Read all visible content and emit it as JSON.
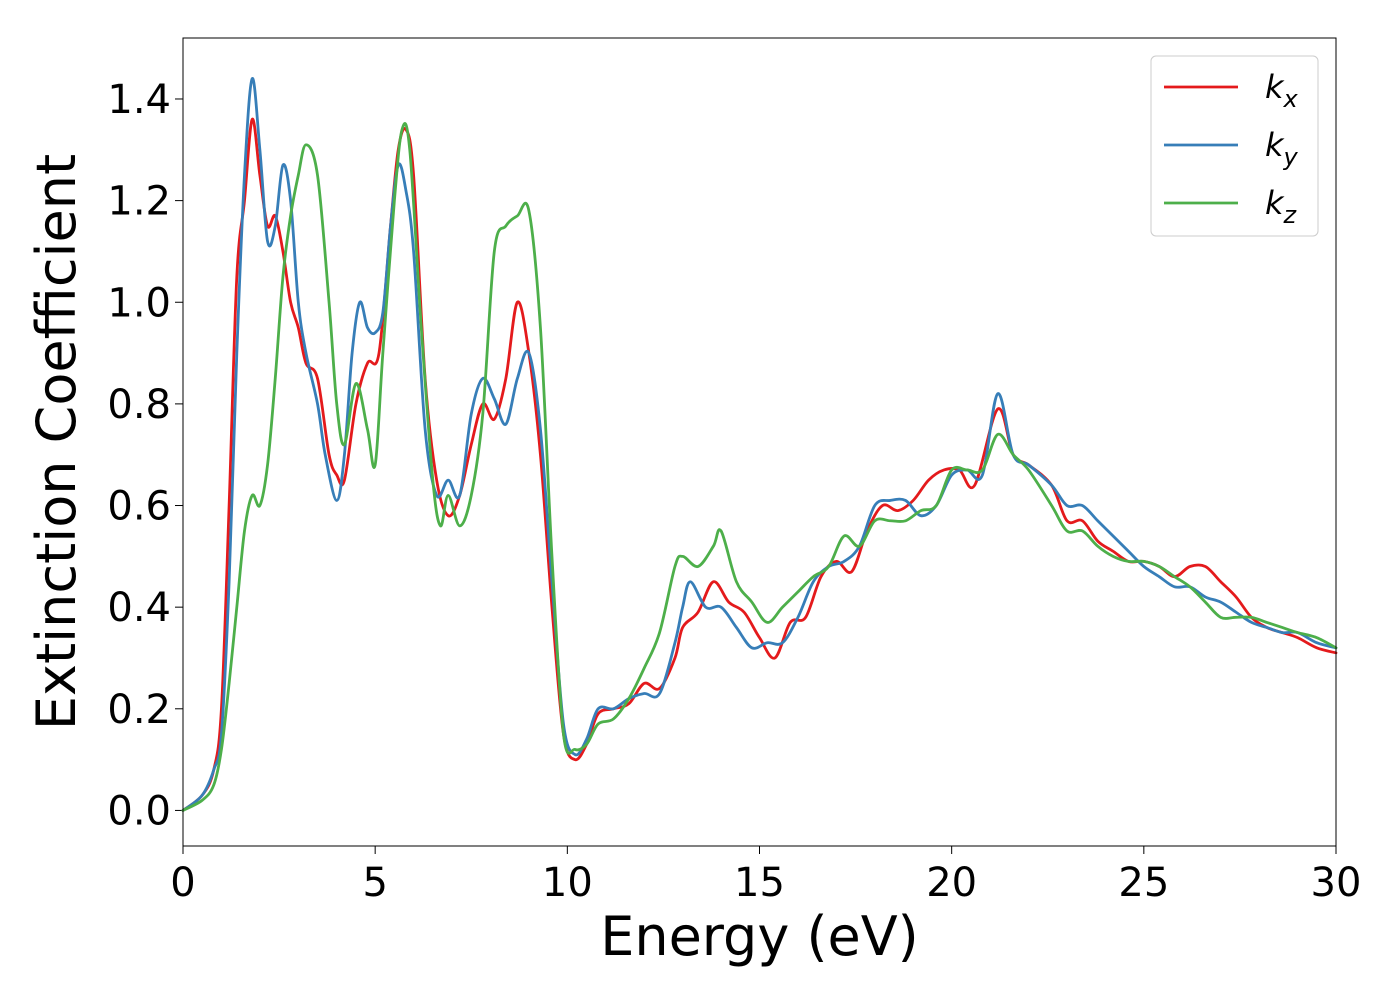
{
  "chart_data": {
    "type": "line",
    "title": "",
    "xlabel": "Energy (eV)",
    "ylabel": "Extinction Coefficient",
    "xlim": [
      0,
      30
    ],
    "ylim": [
      -0.07,
      1.52
    ],
    "xticks": [
      0,
      5,
      10,
      15,
      20,
      25,
      30
    ],
    "xtick_labels": [
      "0",
      "5",
      "10",
      "15",
      "20",
      "25",
      "30"
    ],
    "yticks": [
      0.0,
      0.2,
      0.4,
      0.6,
      0.8,
      1.0,
      1.2,
      1.4
    ],
    "ytick_labels": [
      "0.0",
      "0.2",
      "0.4",
      "0.6",
      "0.8",
      "1.0",
      "1.2",
      "1.4"
    ],
    "grid": false,
    "legend_position": "top-right",
    "series": [
      {
        "name": "k",
        "subscript": "x",
        "color": "#e41a1c",
        "points": [
          [
            0,
            0
          ],
          [
            0.5,
            0.03
          ],
          [
            0.8,
            0.08
          ],
          [
            1.0,
            0.2
          ],
          [
            1.2,
            0.6
          ],
          [
            1.4,
            1.05
          ],
          [
            1.6,
            1.2
          ],
          [
            1.8,
            1.36
          ],
          [
            2.0,
            1.25
          ],
          [
            2.2,
            1.15
          ],
          [
            2.4,
            1.17
          ],
          [
            2.6,
            1.1
          ],
          [
            2.8,
            1.0
          ],
          [
            3.0,
            0.95
          ],
          [
            3.2,
            0.88
          ],
          [
            3.5,
            0.85
          ],
          [
            3.8,
            0.7
          ],
          [
            4.0,
            0.66
          ],
          [
            4.2,
            0.65
          ],
          [
            4.5,
            0.8
          ],
          [
            4.8,
            0.88
          ],
          [
            5.1,
            0.9
          ],
          [
            5.4,
            1.15
          ],
          [
            5.6,
            1.3
          ],
          [
            5.8,
            1.34
          ],
          [
            6.0,
            1.25
          ],
          [
            6.3,
            0.85
          ],
          [
            6.6,
            0.65
          ],
          [
            6.9,
            0.58
          ],
          [
            7.2,
            0.62
          ],
          [
            7.5,
            0.72
          ],
          [
            7.8,
            0.8
          ],
          [
            8.1,
            0.77
          ],
          [
            8.4,
            0.85
          ],
          [
            8.7,
            1.0
          ],
          [
            9.0,
            0.9
          ],
          [
            9.3,
            0.7
          ],
          [
            9.6,
            0.4
          ],
          [
            9.9,
            0.15
          ],
          [
            10.2,
            0.1
          ],
          [
            10.5,
            0.13
          ],
          [
            10.8,
            0.19
          ],
          [
            11.2,
            0.2
          ],
          [
            11.6,
            0.21
          ],
          [
            12.0,
            0.25
          ],
          [
            12.4,
            0.24
          ],
          [
            12.8,
            0.3
          ],
          [
            13.0,
            0.36
          ],
          [
            13.4,
            0.39
          ],
          [
            13.8,
            0.45
          ],
          [
            14.2,
            0.41
          ],
          [
            14.6,
            0.39
          ],
          [
            15.0,
            0.34
          ],
          [
            15.4,
            0.3
          ],
          [
            15.8,
            0.37
          ],
          [
            16.2,
            0.38
          ],
          [
            16.6,
            0.46
          ],
          [
            17.0,
            0.49
          ],
          [
            17.4,
            0.47
          ],
          [
            17.8,
            0.55
          ],
          [
            18.2,
            0.6
          ],
          [
            18.6,
            0.59
          ],
          [
            19.0,
            0.61
          ],
          [
            19.4,
            0.65
          ],
          [
            19.8,
            0.67
          ],
          [
            20.2,
            0.67
          ],
          [
            20.6,
            0.64
          ],
          [
            21.2,
            0.79
          ],
          [
            21.6,
            0.7
          ],
          [
            22.0,
            0.68
          ],
          [
            22.6,
            0.64
          ],
          [
            23.0,
            0.57
          ],
          [
            23.4,
            0.57
          ],
          [
            23.8,
            0.53
          ],
          [
            24.2,
            0.51
          ],
          [
            24.6,
            0.49
          ],
          [
            25.0,
            0.49
          ],
          [
            25.4,
            0.48
          ],
          [
            25.8,
            0.46
          ],
          [
            26.2,
            0.48
          ],
          [
            26.6,
            0.48
          ],
          [
            27.0,
            0.45
          ],
          [
            27.4,
            0.42
          ],
          [
            27.8,
            0.38
          ],
          [
            28.2,
            0.36
          ],
          [
            28.6,
            0.35
          ],
          [
            29.0,
            0.34
          ],
          [
            29.5,
            0.32
          ],
          [
            30.0,
            0.31
          ]
        ]
      },
      {
        "name": "k",
        "subscript": "y",
        "color": "#377eb8",
        "points": [
          [
            0,
            0
          ],
          [
            0.5,
            0.03
          ],
          [
            0.8,
            0.08
          ],
          [
            1.0,
            0.15
          ],
          [
            1.2,
            0.45
          ],
          [
            1.4,
            0.9
          ],
          [
            1.6,
            1.25
          ],
          [
            1.8,
            1.44
          ],
          [
            2.0,
            1.3
          ],
          [
            2.2,
            1.12
          ],
          [
            2.4,
            1.15
          ],
          [
            2.6,
            1.27
          ],
          [
            2.8,
            1.2
          ],
          [
            3.0,
            1.0
          ],
          [
            3.2,
            0.9
          ],
          [
            3.5,
            0.8
          ],
          [
            3.7,
            0.7
          ],
          [
            4.0,
            0.61
          ],
          [
            4.2,
            0.7
          ],
          [
            4.4,
            0.9
          ],
          [
            4.6,
            1.0
          ],
          [
            4.8,
            0.95
          ],
          [
            5.0,
            0.94
          ],
          [
            5.2,
            0.98
          ],
          [
            5.4,
            1.15
          ],
          [
            5.6,
            1.27
          ],
          [
            5.8,
            1.22
          ],
          [
            6.0,
            1.1
          ],
          [
            6.3,
            0.75
          ],
          [
            6.6,
            0.62
          ],
          [
            6.9,
            0.65
          ],
          [
            7.2,
            0.62
          ],
          [
            7.5,
            0.78
          ],
          [
            7.8,
            0.85
          ],
          [
            8.1,
            0.81
          ],
          [
            8.4,
            0.76
          ],
          [
            8.7,
            0.85
          ],
          [
            9.0,
            0.9
          ],
          [
            9.3,
            0.75
          ],
          [
            9.6,
            0.45
          ],
          [
            9.9,
            0.17
          ],
          [
            10.2,
            0.11
          ],
          [
            10.5,
            0.14
          ],
          [
            10.8,
            0.2
          ],
          [
            11.2,
            0.2
          ],
          [
            11.6,
            0.22
          ],
          [
            12.0,
            0.23
          ],
          [
            12.4,
            0.23
          ],
          [
            12.8,
            0.33
          ],
          [
            13.0,
            0.4
          ],
          [
            13.2,
            0.45
          ],
          [
            13.6,
            0.4
          ],
          [
            14.0,
            0.4
          ],
          [
            14.4,
            0.36
          ],
          [
            14.8,
            0.32
          ],
          [
            15.2,
            0.33
          ],
          [
            15.6,
            0.33
          ],
          [
            16.0,
            0.38
          ],
          [
            16.4,
            0.45
          ],
          [
            16.8,
            0.48
          ],
          [
            17.2,
            0.49
          ],
          [
            17.6,
            0.52
          ],
          [
            18.0,
            0.6
          ],
          [
            18.4,
            0.61
          ],
          [
            18.8,
            0.61
          ],
          [
            19.2,
            0.58
          ],
          [
            19.6,
            0.6
          ],
          [
            20.0,
            0.66
          ],
          [
            20.4,
            0.67
          ],
          [
            20.8,
            0.66
          ],
          [
            21.2,
            0.82
          ],
          [
            21.6,
            0.7
          ],
          [
            22.0,
            0.68
          ],
          [
            22.6,
            0.64
          ],
          [
            23.0,
            0.6
          ],
          [
            23.4,
            0.6
          ],
          [
            23.8,
            0.57
          ],
          [
            24.2,
            0.54
          ],
          [
            24.6,
            0.51
          ],
          [
            25.0,
            0.48
          ],
          [
            25.4,
            0.46
          ],
          [
            25.8,
            0.44
          ],
          [
            26.2,
            0.44
          ],
          [
            26.6,
            0.42
          ],
          [
            27.0,
            0.41
          ],
          [
            27.4,
            0.39
          ],
          [
            27.8,
            0.37
          ],
          [
            28.2,
            0.36
          ],
          [
            28.6,
            0.35
          ],
          [
            29.0,
            0.35
          ],
          [
            29.5,
            0.33
          ],
          [
            30.0,
            0.32
          ]
        ]
      },
      {
        "name": "k",
        "subscript": "z",
        "color": "#4daf4a",
        "points": [
          [
            0,
            0
          ],
          [
            0.5,
            0.02
          ],
          [
            0.8,
            0.05
          ],
          [
            1.0,
            0.12
          ],
          [
            1.2,
            0.25
          ],
          [
            1.4,
            0.4
          ],
          [
            1.6,
            0.55
          ],
          [
            1.8,
            0.62
          ],
          [
            2.0,
            0.6
          ],
          [
            2.2,
            0.68
          ],
          [
            2.4,
            0.85
          ],
          [
            2.6,
            1.05
          ],
          [
            2.8,
            1.17
          ],
          [
            3.0,
            1.25
          ],
          [
            3.2,
            1.31
          ],
          [
            3.5,
            1.25
          ],
          [
            3.8,
            1.0
          ],
          [
            4.0,
            0.8
          ],
          [
            4.2,
            0.72
          ],
          [
            4.5,
            0.84
          ],
          [
            4.8,
            0.75
          ],
          [
            5.0,
            0.68
          ],
          [
            5.2,
            0.9
          ],
          [
            5.5,
            1.2
          ],
          [
            5.7,
            1.34
          ],
          [
            5.9,
            1.3
          ],
          [
            6.2,
            0.95
          ],
          [
            6.5,
            0.65
          ],
          [
            6.7,
            0.56
          ],
          [
            6.9,
            0.62
          ],
          [
            7.2,
            0.56
          ],
          [
            7.5,
            0.62
          ],
          [
            7.8,
            0.78
          ],
          [
            8.1,
            1.1
          ],
          [
            8.4,
            1.15
          ],
          [
            8.7,
            1.17
          ],
          [
            9.0,
            1.18
          ],
          [
            9.3,
            0.95
          ],
          [
            9.6,
            0.5
          ],
          [
            9.9,
            0.15
          ],
          [
            10.2,
            0.12
          ],
          [
            10.5,
            0.13
          ],
          [
            10.8,
            0.17
          ],
          [
            11.2,
            0.18
          ],
          [
            11.6,
            0.22
          ],
          [
            12.0,
            0.28
          ],
          [
            12.4,
            0.35
          ],
          [
            12.8,
            0.48
          ],
          [
            13.0,
            0.5
          ],
          [
            13.4,
            0.48
          ],
          [
            13.8,
            0.52
          ],
          [
            14.0,
            0.55
          ],
          [
            14.4,
            0.45
          ],
          [
            14.8,
            0.41
          ],
          [
            15.2,
            0.37
          ],
          [
            15.6,
            0.4
          ],
          [
            16.0,
            0.43
          ],
          [
            16.4,
            0.46
          ],
          [
            16.8,
            0.48
          ],
          [
            17.2,
            0.54
          ],
          [
            17.6,
            0.52
          ],
          [
            18.0,
            0.57
          ],
          [
            18.4,
            0.57
          ],
          [
            18.8,
            0.57
          ],
          [
            19.2,
            0.59
          ],
          [
            19.6,
            0.6
          ],
          [
            20.0,
            0.67
          ],
          [
            20.4,
            0.67
          ],
          [
            20.8,
            0.67
          ],
          [
            21.2,
            0.74
          ],
          [
            21.6,
            0.7
          ],
          [
            22.0,
            0.67
          ],
          [
            22.6,
            0.6
          ],
          [
            23.0,
            0.55
          ],
          [
            23.4,
            0.55
          ],
          [
            23.8,
            0.52
          ],
          [
            24.2,
            0.5
          ],
          [
            24.6,
            0.49
          ],
          [
            25.0,
            0.49
          ],
          [
            25.4,
            0.48
          ],
          [
            25.8,
            0.46
          ],
          [
            26.2,
            0.44
          ],
          [
            26.6,
            0.41
          ],
          [
            27.0,
            0.38
          ],
          [
            27.4,
            0.38
          ],
          [
            27.8,
            0.38
          ],
          [
            28.2,
            0.37
          ],
          [
            28.6,
            0.36
          ],
          [
            29.0,
            0.35
          ],
          [
            29.5,
            0.34
          ],
          [
            30.0,
            0.32
          ]
        ]
      }
    ]
  }
}
